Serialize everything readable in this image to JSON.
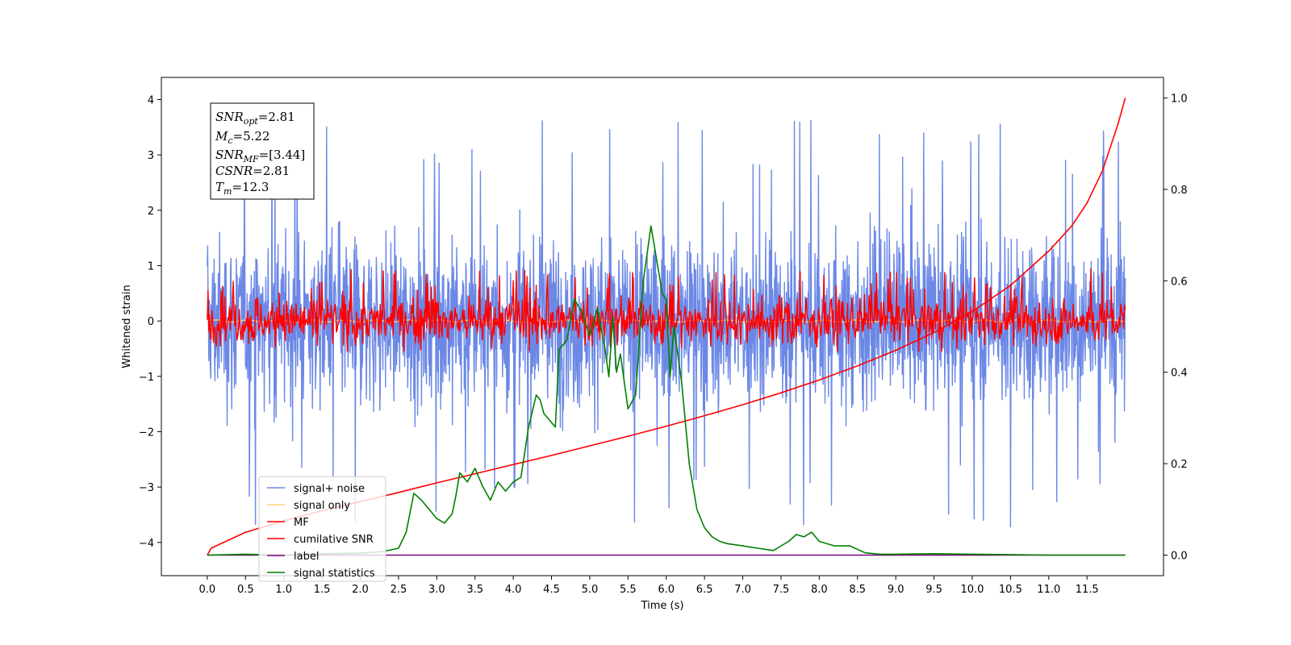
{
  "chart_data": {
    "type": "line",
    "title": "",
    "xlabel": "Time (s)",
    "ylabel": "Whitened strain",
    "xlim": [
      -0.6,
      12.5
    ],
    "ylim": [
      -4.6,
      4.4
    ],
    "y2lim": [
      -0.045,
      1.045
    ],
    "x_ticks": [
      "0.0",
      "0.5",
      "1.0",
      "1.5",
      "2.0",
      "2.5",
      "3.0",
      "3.5",
      "4.0",
      "4.5",
      "5.0",
      "5.5",
      "6.0",
      "6.5",
      "7.0",
      "7.5",
      "8.0",
      "8.5",
      "9.0",
      "9.5",
      "10.0",
      "10.5",
      "11.0",
      "11.5"
    ],
    "y_ticks": [
      "4",
      "3",
      "2",
      "1",
      "0",
      "−1",
      "−2",
      "−3",
      "−4"
    ],
    "y2_ticks": [
      "1.0",
      "0.8",
      "0.6",
      "0.4",
      "0.2",
      "0.0"
    ],
    "legend_position": "lower-left",
    "annotation": {
      "snr_opt": "=2.81",
      "mc": "=5.22",
      "snr_mf": "=[3.44]",
      "csnr": "=2.81",
      "tm": "=12.3"
    },
    "series": [
      {
        "name": "signal+ noise",
        "color": "#6b88e6",
        "axis": "left",
        "description": "whitened noise, roughly uniform band between -2.5 and 2.5 with spikes up to about ±3.9",
        "t_start": 0.0,
        "t_end": 12.0,
        "band_low": -2.4,
        "band_high": 2.4
      },
      {
        "name": "signal only",
        "color": "#ffd27f",
        "axis": "left",
        "description": "near zero across the whole interval",
        "t_start": 0.0,
        "t_end": 12.0,
        "values": [
          0.0,
          0.0
        ]
      },
      {
        "name": "MF",
        "color": "#ff0000",
        "axis": "left",
        "description": "matched filter output oscillating mostly between -0.5 and 0.8",
        "t_start": 0.0,
        "t_end": 12.0,
        "band_low": -0.5,
        "band_high": 0.6
      },
      {
        "name": "cumilative SNR",
        "color": "#ff0000",
        "axis": "right",
        "x": [
          0.0,
          0.05,
          0.5,
          1.0,
          1.5,
          2.0,
          2.5,
          3.0,
          3.5,
          4.0,
          4.5,
          5.0,
          5.5,
          6.0,
          6.5,
          7.0,
          7.5,
          8.0,
          8.5,
          9.0,
          9.5,
          10.0,
          10.5,
          11.0,
          11.3,
          11.5,
          11.7,
          11.9,
          12.0
        ],
        "values": [
          0.0,
          0.015,
          0.05,
          0.075,
          0.097,
          0.117,
          0.137,
          0.158,
          0.178,
          0.198,
          0.218,
          0.239,
          0.26,
          0.282,
          0.305,
          0.329,
          0.355,
          0.383,
          0.414,
          0.448,
          0.487,
          0.533,
          0.59,
          0.665,
          0.72,
          0.77,
          0.84,
          0.94,
          1.0
        ]
      },
      {
        "name": "label",
        "color": "#800080",
        "axis": "right",
        "x": [
          0.0,
          12.0
        ],
        "values": [
          0.0,
          0.0
        ]
      },
      {
        "name": "signal statistics",
        "color": "#008000",
        "axis": "right",
        "x": [
          0.0,
          0.5,
          1.0,
          1.5,
          2.0,
          2.3,
          2.5,
          2.6,
          2.7,
          2.8,
          3.0,
          3.1,
          3.2,
          3.25,
          3.3,
          3.4,
          3.5,
          3.6,
          3.7,
          3.8,
          3.9,
          4.0,
          4.1,
          4.2,
          4.3,
          4.35,
          4.4,
          4.5,
          4.55,
          4.6,
          4.7,
          4.8,
          4.9,
          5.0,
          5.1,
          5.2,
          5.25,
          5.3,
          5.35,
          5.4,
          5.5,
          5.6,
          5.7,
          5.8,
          5.9,
          5.95,
          6.0,
          6.05,
          6.1,
          6.2,
          6.3,
          6.4,
          6.5,
          6.6,
          6.7,
          6.8,
          7.0,
          7.2,
          7.4,
          7.6,
          7.7,
          7.8,
          7.9,
          8.0,
          8.2,
          8.4,
          8.6,
          8.8,
          9.0,
          9.5,
          10.0,
          10.5,
          11.0,
          11.5,
          12.0
        ],
        "values": [
          0.0,
          0.002,
          0.0,
          0.003,
          0.004,
          0.008,
          0.015,
          0.05,
          0.135,
          0.12,
          0.08,
          0.07,
          0.09,
          0.13,
          0.18,
          0.16,
          0.19,
          0.15,
          0.12,
          0.16,
          0.14,
          0.16,
          0.17,
          0.28,
          0.35,
          0.34,
          0.31,
          0.29,
          0.28,
          0.45,
          0.47,
          0.56,
          0.53,
          0.48,
          0.54,
          0.45,
          0.39,
          0.52,
          0.4,
          0.44,
          0.32,
          0.35,
          0.6,
          0.72,
          0.62,
          0.57,
          0.56,
          0.39,
          0.5,
          0.38,
          0.2,
          0.1,
          0.06,
          0.04,
          0.03,
          0.025,
          0.02,
          0.015,
          0.01,
          0.03,
          0.045,
          0.04,
          0.05,
          0.03,
          0.02,
          0.02,
          0.005,
          0.002,
          0.002,
          0.003,
          0.002,
          0.001,
          0.0,
          0.0,
          0.0
        ]
      }
    ]
  }
}
